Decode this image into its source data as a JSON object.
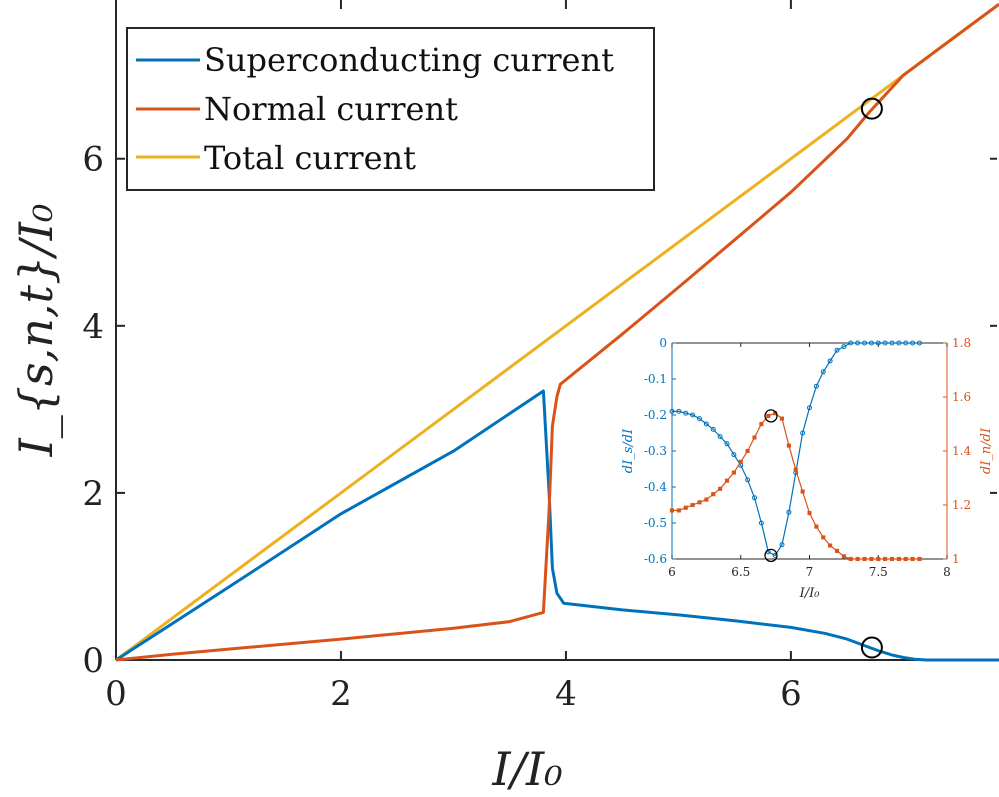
{
  "colors": {
    "superconducting": "#0072BD",
    "normal": "#D95319",
    "total": "#EDB120",
    "axis": "#262626",
    "marker": "#000000"
  },
  "chart_data": [
    {
      "type": "line",
      "xlabel": "I/I₀",
      "ylabel": "I_{s,n,t}/I₀",
      "xlim": [
        0,
        7.85
      ],
      "ylim": [
        0,
        7.9
      ],
      "xticks": [
        "0",
        "2",
        "4",
        "6"
      ],
      "yticks": [
        "0",
        "2",
        "4",
        "6"
      ],
      "grid": false,
      "legend_position": "top-left",
      "series": [
        {
          "name": "Superconducting current",
          "color_key": "superconducting",
          "x": [
            0,
            1,
            2,
            3,
            3.8,
            3.85,
            3.88,
            3.92,
            3.98,
            4.5,
            5.0,
            5.5,
            6.0,
            6.3,
            6.5,
            6.7,
            6.8,
            6.9,
            7.0,
            7.1,
            7.2,
            7.3,
            7.85
          ],
          "y": [
            0,
            0.87,
            1.75,
            2.5,
            3.22,
            2.0,
            1.1,
            0.8,
            0.68,
            0.6,
            0.54,
            0.47,
            0.39,
            0.32,
            0.25,
            0.15,
            0.1,
            0.06,
            0.03,
            0.01,
            0.0,
            0.0,
            0.0
          ]
        },
        {
          "name": "Normal current",
          "color_key": "normal",
          "x": [
            0,
            0.5,
            1,
            2,
            3,
            3.5,
            3.8,
            3.85,
            3.88,
            3.92,
            3.95,
            4.5,
            5.0,
            5.5,
            6.0,
            6.5,
            6.7,
            7.0,
            7.3,
            7.85
          ],
          "y": [
            0,
            0.07,
            0.13,
            0.25,
            0.38,
            0.46,
            0.57,
            1.8,
            2.8,
            3.15,
            3.3,
            3.9,
            4.46,
            5.03,
            5.6,
            6.24,
            6.56,
            7.0,
            7.3,
            7.85
          ]
        },
        {
          "name": "Total current",
          "color_key": "total",
          "x": [
            0,
            7.85
          ],
          "y": [
            0,
            7.85
          ]
        }
      ],
      "markers": [
        {
          "x": 6.72,
          "y": 6.6
        },
        {
          "x": 6.72,
          "y": 0.15
        }
      ]
    },
    {
      "type": "line",
      "xlabel": "I/I₀",
      "ylabel_left": "dI_s/dI",
      "ylabel_right": "dI_n/dI",
      "xlim": [
        6,
        8
      ],
      "ylim_left": [
        -0.6,
        0
      ],
      "ylim_right": [
        1,
        1.8
      ],
      "xticks": [
        "6",
        "6.5",
        "7",
        "7.5",
        "8"
      ],
      "yticks_left": [
        "0",
        "-0.1",
        "-0.2",
        "-0.3",
        "-0.4",
        "-0.5",
        "-0.6"
      ],
      "yticks_right": [
        "1.8",
        "1.6",
        "1.4",
        "1.2",
        "1"
      ],
      "series": [
        {
          "name": "dI_s/dI",
          "axis": "left",
          "color_key": "superconducting",
          "marker": "circle",
          "x": [
            6.0,
            6.05,
            6.1,
            6.15,
            6.2,
            6.25,
            6.3,
            6.35,
            6.4,
            6.45,
            6.5,
            6.55,
            6.6,
            6.65,
            6.7,
            6.75,
            6.8,
            6.85,
            6.9,
            6.95,
            7.0,
            7.05,
            7.1,
            7.15,
            7.2,
            7.25,
            7.3,
            7.35,
            7.4,
            7.45,
            7.5,
            7.55,
            7.6,
            7.65,
            7.7,
            7.75,
            7.8
          ],
          "y": [
            -0.19,
            -0.19,
            -0.195,
            -0.2,
            -0.21,
            -0.225,
            -0.24,
            -0.26,
            -0.28,
            -0.31,
            -0.34,
            -0.38,
            -0.43,
            -0.5,
            -0.58,
            -0.59,
            -0.56,
            -0.47,
            -0.36,
            -0.25,
            -0.18,
            -0.12,
            -0.08,
            -0.05,
            -0.02,
            -0.01,
            0,
            0,
            0,
            0,
            0,
            0,
            0,
            0,
            0,
            0,
            0
          ]
        },
        {
          "name": "dI_n/dI",
          "axis": "right",
          "color_key": "normal",
          "marker": "square",
          "x": [
            6.0,
            6.05,
            6.1,
            6.15,
            6.2,
            6.25,
            6.3,
            6.35,
            6.4,
            6.45,
            6.5,
            6.55,
            6.6,
            6.65,
            6.7,
            6.75,
            6.8,
            6.85,
            6.9,
            6.95,
            7.0,
            7.05,
            7.1,
            7.15,
            7.2,
            7.25,
            7.3,
            7.35,
            7.4,
            7.45,
            7.5,
            7.55,
            7.6,
            7.65,
            7.7,
            7.75,
            7.8
          ],
          "y": [
            1.18,
            1.18,
            1.19,
            1.2,
            1.21,
            1.22,
            1.24,
            1.26,
            1.29,
            1.32,
            1.36,
            1.4,
            1.45,
            1.5,
            1.53,
            1.54,
            1.52,
            1.42,
            1.33,
            1.25,
            1.17,
            1.12,
            1.08,
            1.05,
            1.03,
            1.01,
            1.0,
            1.0,
            1.0,
            1.0,
            1.0,
            1.0,
            1.0,
            1.0,
            1.0,
            1.0,
            1.0
          ]
        }
      ],
      "markers": [
        {
          "x": 6.72,
          "y": -0.59,
          "axis": "left"
        },
        {
          "x": 6.72,
          "y": 1.53,
          "axis": "right"
        }
      ]
    }
  ]
}
